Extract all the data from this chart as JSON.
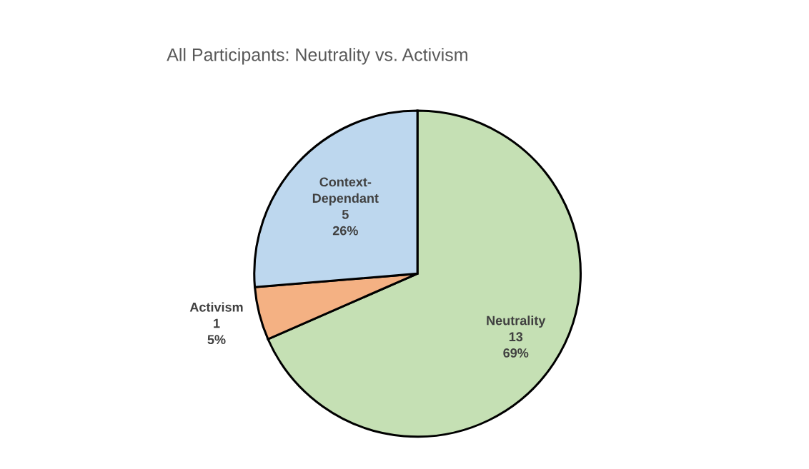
{
  "chart_data": {
    "type": "pie",
    "title": "All Participants: Neutrality vs. Activism",
    "categories": [
      "Neutrality",
      "Activism",
      "Context-\nDependant"
    ],
    "values": [
      13,
      1,
      5
    ],
    "colors": [
      "#c5e0b4",
      "#f4b183",
      "#bdd7ee"
    ],
    "value_labels": [
      "13\n69%",
      "1\n5%",
      "5\n26%"
    ],
    "legend": false
  }
}
